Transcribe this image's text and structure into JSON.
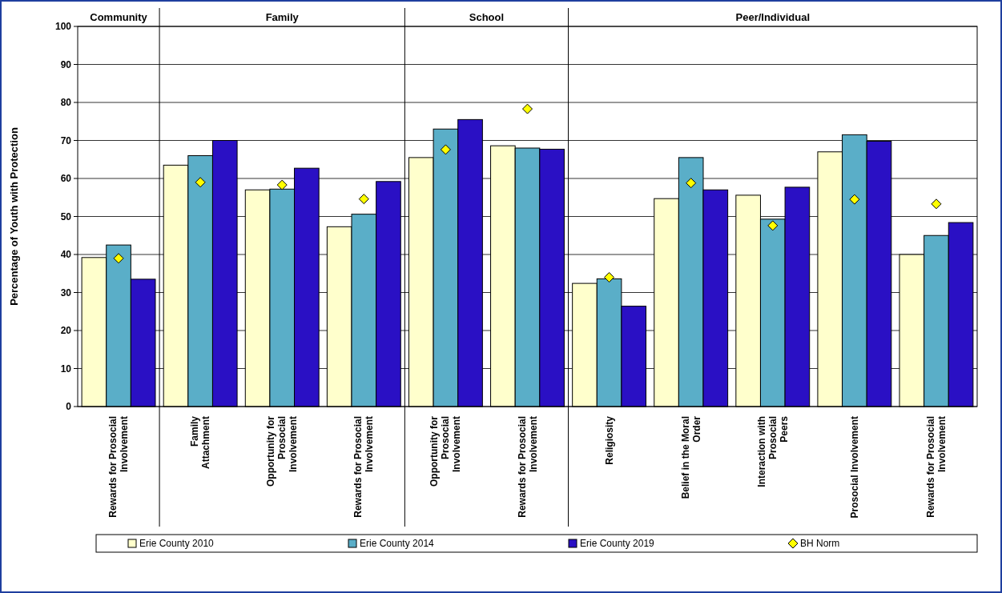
{
  "chart_data": {
    "type": "bar",
    "ylabel": "Percentage of Youth with Protection",
    "annotations": [
      "Community",
      "Family",
      "School",
      "Peer/Individual"
    ],
    "categories": [
      "Rewards for Prosocial\nInvolvement",
      "Family\nAttachment",
      "Opportunity for\nProsocial\nInvolvement",
      "Rewards for Prosocial\nInvolvement",
      "Opportunity for\nProsocial\nInvolvement",
      "Rewards for Prosocial\nInvolvement",
      "Religiosity",
      "Belief in the Moral\nOrder",
      "Interaction with\nProsocial\nPeers",
      "Prosocial Involvement",
      "Rewards for Prosocial\nInvolvement"
    ],
    "series": [
      {
        "name": "Erie County 2010",
        "color": "#ffffcc",
        "values": [
          39.2,
          63.5,
          57,
          47.3,
          65.5,
          68.6,
          32.4,
          54.7,
          55.6,
          67,
          40
        ]
      },
      {
        "name": "Erie County 2014",
        "color": "#5aaec8",
        "values": [
          42.5,
          66,
          57.2,
          50.6,
          73,
          68,
          33.6,
          65.5,
          49.3,
          71.5,
          45
        ]
      },
      {
        "name": "Erie County 2019",
        "color": "#2a10c4",
        "values": [
          33.5,
          70,
          62.7,
          59.2,
          75.5,
          67.7,
          26.4,
          57,
          57.7,
          69.8,
          48.4
        ]
      },
      {
        "name": "BH Norm",
        "type": "scatter",
        "color": "#ffff00",
        "marker": "diamond",
        "values": [
          39,
          59,
          58.3,
          54.6,
          67.6,
          78.3,
          34,
          58.8,
          47.6,
          54.5,
          53.3
        ]
      }
    ],
    "ylim": [
      0,
      100
    ],
    "yticks": [
      0,
      10,
      20,
      30,
      40,
      50,
      60,
      70,
      80,
      90,
      100
    ],
    "grid": "y",
    "legend": "bottom"
  }
}
